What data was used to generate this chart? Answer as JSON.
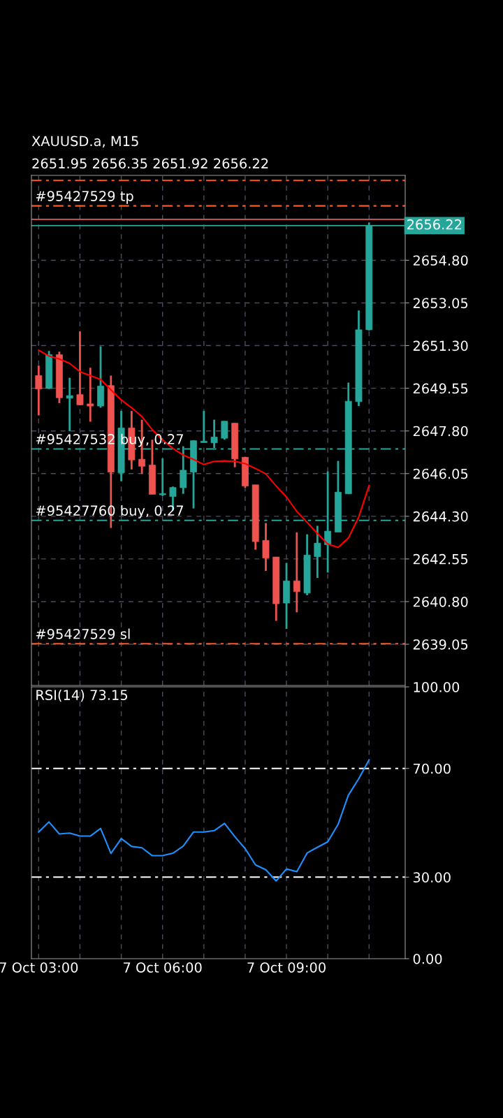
{
  "chart_data": [
    {
      "type": "candlestick",
      "title": "XAUUSD.a, M15",
      "subtitle": "2651.95 2656.35 2651.92 2656.22",
      "categories": [
        null,
        null,
        null,
        null,
        null,
        null,
        null,
        null,
        null,
        null,
        null,
        null,
        null,
        null,
        null,
        null,
        null,
        null,
        null,
        null,
        null,
        null,
        null,
        null,
        null,
        null,
        null,
        null,
        null,
        null,
        null,
        null,
        null
      ],
      "ohlc": [
        [
          2650.07,
          2650.48,
          2648.44,
          2649.52
        ],
        [
          2649.54,
          2651.08,
          2649.52,
          2650.93
        ],
        [
          2650.93,
          2651.05,
          2648.94,
          2649.16
        ],
        [
          2649.14,
          2649.98,
          2647.79,
          2649.25
        ],
        [
          2649.29,
          2651.88,
          2648.85,
          2648.87
        ],
        [
          2648.91,
          2650.39,
          2648.18,
          2648.82
        ],
        [
          2648.82,
          2651.27,
          2648.75,
          2649.64
        ],
        [
          2649.66,
          2650.07,
          2643.82,
          2646.11
        ],
        [
          2646.08,
          2648.62,
          2645.74,
          2647.92
        ],
        [
          2647.92,
          2648.62,
          2646.22,
          2646.61
        ],
        [
          2646.64,
          2648.26,
          2646.04,
          2646.35
        ],
        [
          2646.4,
          2647.44,
          2645.2,
          2645.2
        ],
        [
          2645.18,
          2646.67,
          2645.13,
          2645.23
        ],
        [
          2645.11,
          2645.52,
          2644.54,
          2645.48
        ],
        [
          2645.47,
          2647.17,
          2645.22,
          2646.19
        ],
        [
          2646.11,
          2647.42,
          2644.62,
          2647.4
        ],
        [
          2647.32,
          2648.62,
          2647.32,
          2647.38
        ],
        [
          2647.31,
          2648.26,
          2647.1,
          2647.55
        ],
        [
          2647.5,
          2648.2,
          2647.44,
          2648.2
        ],
        [
          2648.12,
          2648.12,
          2646.31,
          2646.65
        ],
        [
          2646.72,
          2646.74,
          2645.47,
          2645.54
        ],
        [
          2645.59,
          2645.59,
          2642.93,
          2643.26
        ],
        [
          2643.31,
          2644.02,
          2642.06,
          2642.59
        ],
        [
          2642.63,
          2642.63,
          2640.01,
          2640.71
        ],
        [
          2640.74,
          2642.39,
          2639.68,
          2641.65
        ],
        [
          2641.65,
          2643.64,
          2640.36,
          2641.21
        ],
        [
          2641.15,
          2643.56,
          2641.06,
          2642.71
        ],
        [
          2642.64,
          2643.91,
          2641.77,
          2643.2
        ],
        [
          2643.13,
          2646.14,
          2641.99,
          2643.69
        ],
        [
          2643.65,
          2646.57,
          2643.65,
          2645.29
        ],
        [
          2645.22,
          2649.78,
          2645.22,
          2649.02
        ],
        [
          2649.0,
          2652.74,
          2648.82,
          2651.95
        ],
        [
          2651.95,
          2656.35,
          2651.92,
          2656.22
        ]
      ],
      "colors": [
        "#ef5350",
        "#26a69a",
        "#ef5350",
        "#26a69a",
        "#ef5350",
        "#ef5350",
        "#26a69a",
        "#ef5350",
        "#26a69a",
        "#ef5350",
        "#ef5350",
        "#ef5350",
        "#26a69a",
        "#26a69a",
        "#26a69a",
        "#26a69a",
        "#26a69a",
        "#26a69a",
        "#26a69a",
        "#ef5350",
        "#ef5350",
        "#ef5350",
        "#ef5350",
        "#ef5350",
        "#26a69a",
        "#ef5350",
        "#26a69a",
        "#26a69a",
        "#26a69a",
        "#26a69a",
        "#26a69a",
        "#26a69a",
        "#26a69a"
      ],
      "series": [
        {
          "type": "line",
          "color": "#ff0000",
          "values": [
            2651.11,
            2650.87,
            2650.75,
            2650.57,
            2650.23,
            2650.07,
            2649.91,
            2649.48,
            2649.07,
            2648.75,
            2648.39,
            2647.85,
            2647.44,
            2647.08,
            2646.81,
            2646.63,
            2646.42,
            2646.55,
            2646.57,
            2646.55,
            2646.46,
            2646.26,
            2646.04,
            2645.54,
            2645.09,
            2644.5,
            2644.05,
            2643.59,
            2643.16,
            2643.02,
            2643.41,
            2644.27,
            2645.56
          ]
        }
      ],
      "ref_lines": [
        {
          "axis": "y",
          "value": 2658.07,
          "label": null,
          "color": "#ff5722",
          "line_style": "dashed"
        },
        {
          "axis": "y",
          "value": 2657.03,
          "label": "#95427529 tp",
          "color": "#ff5722",
          "line_style": "dashed"
        },
        {
          "axis": "y",
          "value": 2656.48,
          "label": null,
          "color": "#ef5350",
          "line_style": "solid"
        },
        {
          "axis": "y",
          "value": 2656.22,
          "label": "2656.22",
          "color": "#26a69a",
          "line_style": "solid"
        },
        {
          "axis": "y",
          "value": 2647.06,
          "label": "#95427532 buy, 0.27",
          "color": "#26a69a",
          "line_style": "dashed"
        },
        {
          "axis": "y",
          "value": 2644.13,
          "label": "#95427760 buy, 0.27",
          "color": "#26a69a",
          "line_style": "dashed"
        },
        {
          "axis": "y",
          "value": 2639.07,
          "label": "#95427529 sl",
          "color": "#ff5722",
          "line_style": "dashed"
        }
      ],
      "ylim": [
        2637.36,
        2658.28
      ],
      "yticks": [
        {
          "value": 2639.05,
          "label": "2639.05"
        },
        {
          "value": 2640.8,
          "label": "2640.80"
        },
        {
          "value": 2642.55,
          "label": "2642.55"
        },
        {
          "value": 2644.3,
          "label": "2644.30"
        },
        {
          "value": 2646.05,
          "label": "2646.05"
        },
        {
          "value": 2647.8,
          "label": "2647.80"
        },
        {
          "value": 2649.55,
          "label": "2649.55"
        },
        {
          "value": 2651.3,
          "label": "2651.30"
        },
        {
          "value": 2653.05,
          "label": "2653.05"
        },
        {
          "value": 2654.8,
          "label": "2654.80"
        }
      ],
      "grid": true,
      "tick_labels": "y"
    },
    {
      "type": "line",
      "title": "RSI(14) 73.15",
      "categories": [
        "7 Oct 03:00",
        null,
        null,
        null,
        null,
        null,
        null,
        null,
        null,
        null,
        null,
        null,
        "7 Oct 06:00",
        null,
        null,
        null,
        null,
        null,
        null,
        null,
        null,
        null,
        null,
        null,
        "7 Oct 09:00",
        null,
        null,
        null,
        null,
        null,
        null,
        null,
        null
      ],
      "series": [
        {
          "color": "#1e90ff",
          "values": [
            46.6,
            50.3,
            45.9,
            46.2,
            45.1,
            45.1,
            47.9,
            38.7,
            44.2,
            41.3,
            40.8,
            37.9,
            37.9,
            38.8,
            41.4,
            46.6,
            46.6,
            47.1,
            49.8,
            44.9,
            40.5,
            34.5,
            32.7,
            28.6,
            33.0,
            32.0,
            38.9,
            41.0,
            43.0,
            49.4,
            60.2,
            66.2,
            73.15
          ]
        }
      ],
      "ref_lines": [
        {
          "axis": "y",
          "value": 70,
          "label": null,
          "color": "#ffffff",
          "line_style": "dashed"
        },
        {
          "axis": "y",
          "value": 30,
          "label": null,
          "color": "#ffffff",
          "line_style": "dashed"
        }
      ],
      "ylim": [
        0,
        100
      ],
      "yticks": [
        {
          "value": 0,
          "label": "0.00"
        },
        {
          "value": 30,
          "label": "30.00"
        },
        {
          "value": 70,
          "label": "70.00"
        },
        {
          "value": 100,
          "label": "100.00"
        }
      ],
      "grid": "x"
    }
  ]
}
